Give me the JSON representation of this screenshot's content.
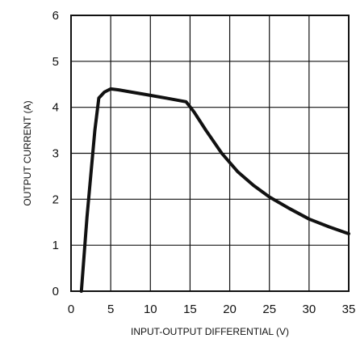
{
  "chart_data": {
    "type": "line",
    "title": "",
    "xlabel": "INPUT-OUTPUT DIFFERENTIAL (V)",
    "ylabel": "OUTPUT CURRENT (A)",
    "xlim": [
      0,
      35
    ],
    "ylim": [
      0,
      6
    ],
    "x_ticks": [
      "0",
      "5",
      "10",
      "15",
      "20",
      "25",
      "30",
      "35"
    ],
    "y_ticks": [
      "0",
      "1",
      "2",
      "3",
      "4",
      "5",
      "6"
    ],
    "grid": true,
    "legend": "none",
    "series": [
      {
        "color": "#111111",
        "x": [
          1.3,
          2.0,
          3.0,
          3.5,
          4.2,
          5.0,
          6.0,
          8.0,
          10.0,
          12.0,
          14.5,
          15.5,
          17.0,
          19.0,
          21.0,
          23.0,
          25.0,
          27.5,
          30.0,
          32.5,
          35.0
        ],
        "y": [
          0.0,
          1.6,
          3.5,
          4.2,
          4.33,
          4.4,
          4.38,
          4.32,
          4.26,
          4.2,
          4.12,
          3.9,
          3.5,
          3.0,
          2.6,
          2.3,
          2.05,
          1.8,
          1.57,
          1.4,
          1.25
        ]
      }
    ]
  }
}
